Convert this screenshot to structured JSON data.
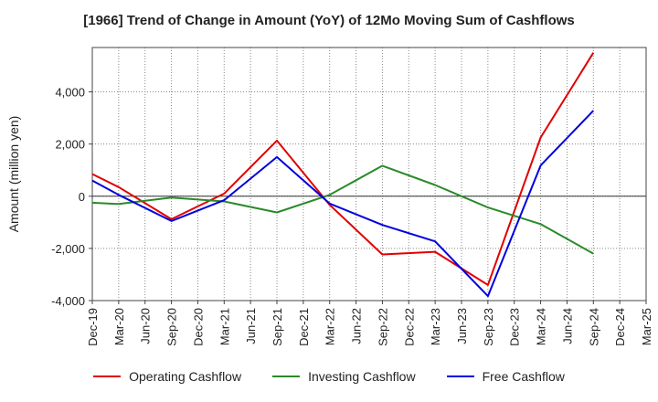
{
  "chart_data": {
    "type": "line",
    "title": "[1966]  Trend of Change in Amount (YoY) of 12Mo Moving Sum of Cashflows",
    "xlabel": "",
    "ylabel": "Amount (million yen)",
    "ylim": [
      -4000,
      5700
    ],
    "yticks": [
      -4000,
      -2000,
      0,
      2000,
      4000
    ],
    "ytick_labels": [
      "-4,000",
      "-2,000",
      "0",
      "2,000",
      "4,000"
    ],
    "grid": true,
    "legend_position": "bottom",
    "categories": [
      "Dec-19",
      "Mar-20",
      "Jun-20",
      "Sep-20",
      "Dec-20",
      "Mar-21",
      "Jun-21",
      "Sep-21",
      "Dec-21",
      "Mar-22",
      "Jun-22",
      "Sep-22",
      "Dec-22",
      "Mar-23",
      "Jun-23",
      "Sep-23",
      "Dec-23",
      "Mar-24",
      "Jun-24",
      "Sep-24",
      "Dec-24",
      "Mar-25"
    ],
    "series": [
      {
        "name": "Operating Cashflow",
        "color": "#e00000",
        "values": [
          850,
          350,
          null,
          -880,
          null,
          100,
          null,
          2130,
          null,
          -330,
          null,
          -2230,
          null,
          -2130,
          null,
          -3400,
          null,
          2250,
          null,
          5500,
          null,
          null
        ]
      },
      {
        "name": "Investing Cashflow",
        "color": "#2a8a2a",
        "values": [
          -250,
          -300,
          null,
          -50,
          null,
          -200,
          null,
          -620,
          null,
          50,
          null,
          1170,
          null,
          430,
          null,
          -430,
          null,
          -1070,
          null,
          -2200,
          null,
          null
        ]
      },
      {
        "name": "Free Cashflow",
        "color": "#0000dd",
        "values": [
          600,
          50,
          null,
          -950,
          null,
          -150,
          null,
          1500,
          null,
          -280,
          null,
          -1100,
          null,
          -1730,
          null,
          -3830,
          null,
          1180,
          null,
          3280,
          null,
          null
        ]
      }
    ]
  }
}
